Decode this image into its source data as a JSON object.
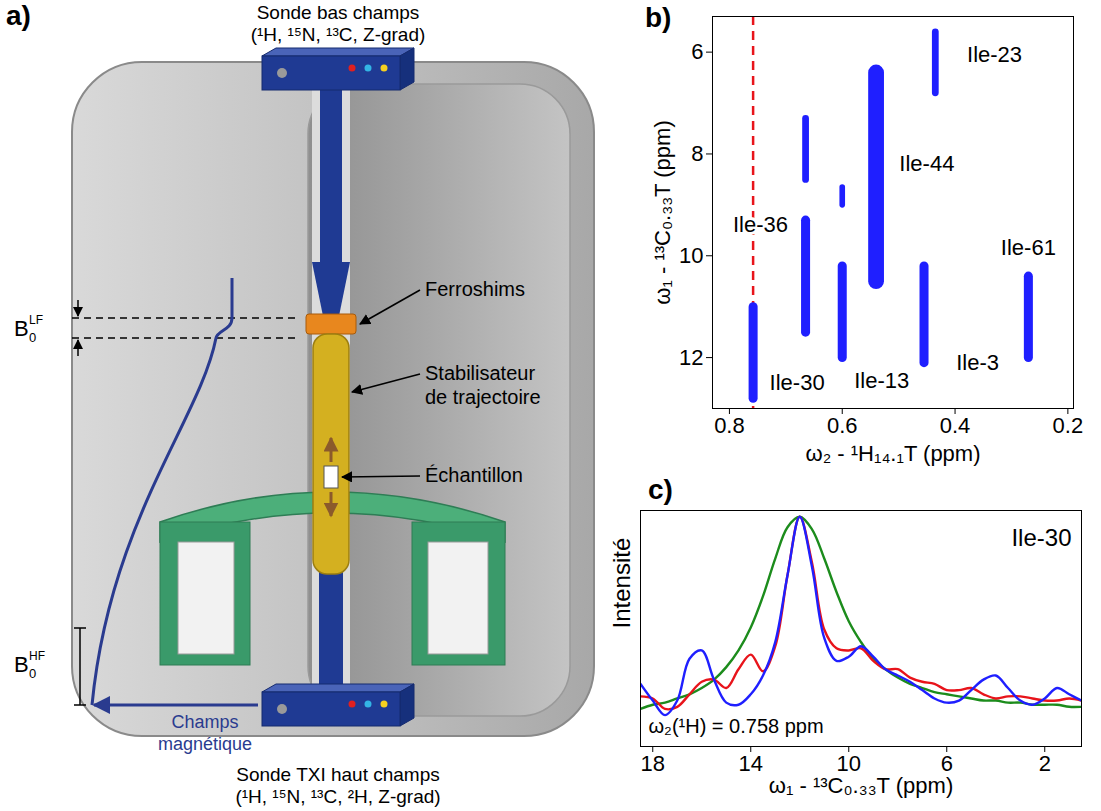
{
  "diagram": {
    "panel": "a)",
    "top_probe": {
      "title": "Sonde bas champs",
      "nuclei": "(¹H, ¹⁵N, ¹³C, Z-grad)"
    },
    "bottom_probe": {
      "title": "Sonde TXI haut champs",
      "nuclei": "(¹H, ¹⁵N, ¹³C, ²H, Z-grad)"
    },
    "callouts": [
      {
        "lines": [
          "Ferroshims"
        ]
      },
      {
        "lines": [
          "Stabilisateur",
          "de trajectoire"
        ]
      },
      {
        "lines": [
          "Échantillon"
        ]
      }
    ],
    "field": {
      "lines": [
        "Champs",
        "magnétique"
      ]
    },
    "b0_low": {
      "base": "B",
      "sub": "0",
      "sup": "LF"
    },
    "b0_high": {
      "base": "B",
      "sub": "0",
      "sup": "HF"
    }
  },
  "chart_data": [
    {
      "type": "contour",
      "panel": "b)",
      "x_label": "ω₂ - ¹H₁₄.₁T (ppm)",
      "y_label": "ω₁ - ¹³C₀.₃₃T (ppm)",
      "xlim": [
        0.83,
        0.19
      ],
      "xticks": [
        0.8,
        0.6,
        0.4,
        0.2
      ],
      "ylim": [
        13,
        5.3
      ],
      "yticks": [
        6,
        8,
        10,
        12
      ],
      "color": "#1f1fff",
      "reference_line": {
        "x": 0.758,
        "color": "#e8141b",
        "line_style": "dashed"
      },
      "peaks": [
        {
          "label": "Ile-30",
          "x": 0.758,
          "y_range": [
            11.0,
            12.8
          ],
          "x_width": 0.016,
          "label_x": 0.68,
          "label_y": 12.5
        },
        {
          "label": null,
          "x": 0.665,
          "y_range": [
            7.3,
            8.5
          ],
          "x_width": 0.012
        },
        {
          "label": "Ile-36",
          "x": 0.665,
          "y_range": [
            9.3,
            11.5
          ],
          "x_width": 0.016,
          "label_x": 0.745,
          "label_y": 9.4
        },
        {
          "label": null,
          "x": 0.6,
          "y_range": [
            8.65,
            9.0
          ],
          "x_width": 0.01
        },
        {
          "label": "Ile-13",
          "x": 0.6,
          "y_range": [
            10.2,
            12.0
          ],
          "x_width": 0.016,
          "label_x": 0.53,
          "label_y": 12.45
        },
        {
          "label": "Ile-44",
          "x": 0.54,
          "y_range": [
            6.4,
            10.5
          ],
          "x_width": 0.028,
          "label_x": 0.45,
          "label_y": 8.2
        },
        {
          "label": "Ile-23",
          "x": 0.435,
          "y_range": [
            5.6,
            6.8
          ],
          "x_width": 0.012,
          "label_x": 0.33,
          "label_y": 6.05
        },
        {
          "label": "Ile-3",
          "x": 0.455,
          "y_range": [
            10.2,
            12.1
          ],
          "x_width": 0.016,
          "label_x": 0.36,
          "label_y": 12.1
        },
        {
          "label": "Ile-61",
          "x": 0.27,
          "y_range": [
            10.4,
            12.0
          ],
          "x_width": 0.016,
          "label_x": 0.27,
          "label_y": 9.85
        }
      ]
    },
    {
      "type": "line",
      "panel": "c)",
      "x_label": "ω₁ - ¹³C₀.₃₃T (ppm)",
      "y_label": "Intensité",
      "annotations": [
        "Ile-30",
        "ω₂(¹H) = 0.758 ppm"
      ],
      "xlim": [
        18.5,
        0.5
      ],
      "xticks": [
        18,
        14,
        10,
        6,
        2
      ],
      "ylim": [
        -0.1,
        1.03
      ],
      "tick_labels": "x",
      "x": [
        18.5,
        18,
        17.5,
        17,
        16.5,
        16,
        15.5,
        15,
        14.5,
        14,
        13.5,
        13,
        12.5,
        12,
        11.5,
        11,
        10.5,
        10,
        9.5,
        9,
        8.5,
        8,
        7.5,
        7,
        6.5,
        6,
        5.5,
        5,
        4.5,
        4,
        3.5,
        3,
        2.5,
        2,
        1.5,
        1,
        0.5
      ],
      "series": [
        {
          "color": "#1c8c1c",
          "values": [
            0.08,
            0.1,
            0.11,
            0.13,
            0.15,
            0.18,
            0.22,
            0.28,
            0.36,
            0.47,
            0.62,
            0.8,
            0.95,
            1.0,
            0.94,
            0.8,
            0.64,
            0.5,
            0.4,
            0.32,
            0.27,
            0.23,
            0.2,
            0.18,
            0.16,
            0.15,
            0.14,
            0.13,
            0.12,
            0.12,
            0.11,
            0.11,
            0.1,
            0.1,
            0.1,
            0.09,
            0.09
          ]
        },
        {
          "color": "#e8141b",
          "values": [
            0.14,
            0.13,
            0.08,
            0.09,
            0.15,
            0.21,
            0.22,
            0.18,
            0.27,
            0.34,
            0.26,
            0.38,
            0.72,
            1.0,
            0.78,
            0.46,
            0.37,
            0.36,
            0.37,
            0.31,
            0.27,
            0.27,
            0.23,
            0.21,
            0.2,
            0.17,
            0.17,
            0.18,
            0.15,
            0.13,
            0.14,
            0.14,
            0.13,
            0.12,
            0.12,
            0.13,
            0.12
          ]
        },
        {
          "color": "#1f1fff",
          "values": [
            0.2,
            0.12,
            0.05,
            0.12,
            0.32,
            0.36,
            0.22,
            0.11,
            0.1,
            0.15,
            0.24,
            0.4,
            0.72,
            1.0,
            0.76,
            0.42,
            0.31,
            0.33,
            0.38,
            0.33,
            0.27,
            0.24,
            0.21,
            0.17,
            0.13,
            0.11,
            0.12,
            0.17,
            0.22,
            0.24,
            0.18,
            0.12,
            0.1,
            0.13,
            0.18,
            0.15,
            0.12
          ]
        }
      ]
    }
  ]
}
